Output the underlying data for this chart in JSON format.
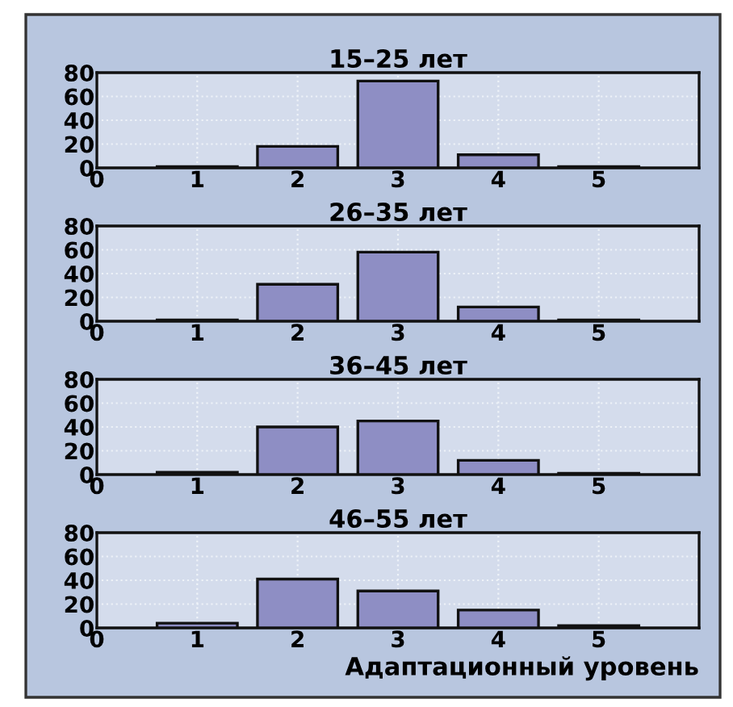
{
  "chart_data": [
    {
      "type": "bar",
      "title": "15–25 лет",
      "x": [
        1,
        2,
        3,
        4,
        5
      ],
      "values": [
        1,
        18,
        73,
        11,
        1
      ],
      "color": "#8e8ec4",
      "xlim": [
        0,
        6
      ],
      "xticks": [
        0,
        1,
        2,
        3,
        4,
        5
      ],
      "ylim": [
        0,
        80
      ],
      "yticks": [
        0,
        20,
        40,
        60,
        80
      ],
      "grid": true
    },
    {
      "type": "bar",
      "title": "26–35 лет",
      "x": [
        1,
        2,
        3,
        4,
        5
      ],
      "values": [
        1,
        31,
        58,
        12,
        1
      ],
      "color": "#8e8ec4",
      "xlim": [
        0,
        6
      ],
      "xticks": [
        0,
        1,
        2,
        3,
        4,
        5
      ],
      "ylim": [
        0,
        80
      ],
      "yticks": [
        0,
        20,
        40,
        60,
        80
      ],
      "grid": true
    },
    {
      "type": "bar",
      "title": "36–45 лет",
      "x": [
        1,
        2,
        3,
        4,
        5
      ],
      "values": [
        2,
        40,
        45,
        12,
        1
      ],
      "color": "#8e8ec4",
      "xlim": [
        0,
        6
      ],
      "xticks": [
        0,
        1,
        2,
        3,
        4,
        5
      ],
      "ylim": [
        0,
        80
      ],
      "yticks": [
        0,
        20,
        40,
        60,
        80
      ],
      "grid": true
    },
    {
      "type": "bar",
      "title": "46–55 лет",
      "xlabel": "Адаптационный уровень",
      "x": [
        1,
        2,
        3,
        4,
        5
      ],
      "values": [
        4,
        41,
        31,
        15,
        2
      ],
      "color": "#8e8ec4",
      "xlim": [
        0,
        6
      ],
      "xticks": [
        0,
        1,
        2,
        3,
        4,
        5
      ],
      "ylim": [
        0,
        80
      ],
      "yticks": [
        0,
        20,
        40,
        60,
        80
      ],
      "grid": true
    }
  ]
}
